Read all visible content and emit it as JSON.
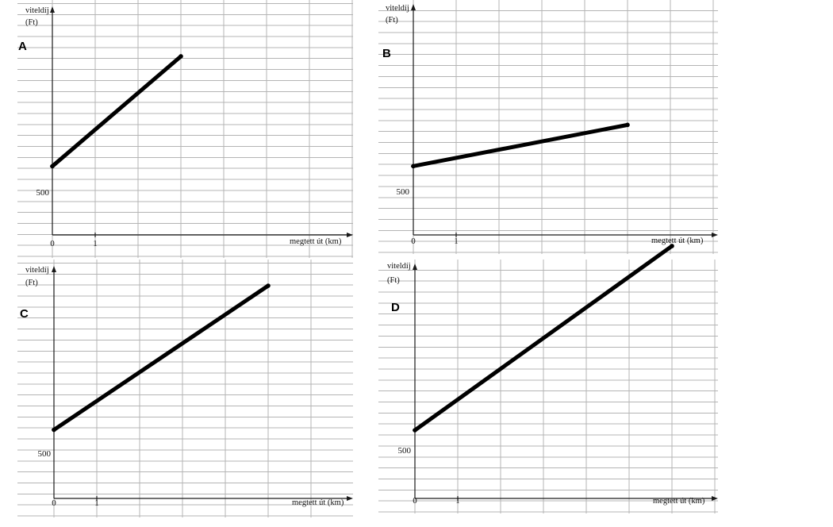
{
  "chart_data": [
    {
      "type": "line",
      "panel_label": "A",
      "ylabel_line1": "viteldíj",
      "ylabel_line2": "(Ft)",
      "xlabel": "megtett út (km)",
      "x_tick_labels": [
        "0",
        "1"
      ],
      "y_tick_label": "500",
      "series": [
        {
          "x": [
            0,
            3
          ],
          "y": [
            500,
            1300
          ]
        }
      ]
    },
    {
      "type": "line",
      "panel_label": "B",
      "ylabel_line1": "viteldíj",
      "ylabel_line2": "(Ft)",
      "xlabel": "megtett út (km)",
      "x_tick_labels": [
        "0",
        "1"
      ],
      "y_tick_label": "500",
      "series": [
        {
          "x": [
            0,
            5
          ],
          "y": [
            500,
            800
          ]
        }
      ]
    },
    {
      "type": "line",
      "panel_label": "C",
      "ylabel_line1": "viteldíj",
      "ylabel_line2": "(Ft)",
      "xlabel": "megtett út (km)",
      "x_tick_labels": [
        "0",
        "1"
      ],
      "y_tick_label": "500",
      "series": [
        {
          "x": [
            0,
            5
          ],
          "y": [
            500,
            1550
          ]
        }
      ]
    },
    {
      "type": "line",
      "panel_label": "D",
      "ylabel_line1": "viteldíj",
      "ylabel_line2": "(Ft)",
      "xlabel": "megtett út (km)",
      "x_tick_labels": [
        "0",
        "1"
      ],
      "y_tick_label": "500",
      "series": [
        {
          "x": [
            0,
            6
          ],
          "y": [
            500,
            1850
          ]
        }
      ]
    }
  ]
}
